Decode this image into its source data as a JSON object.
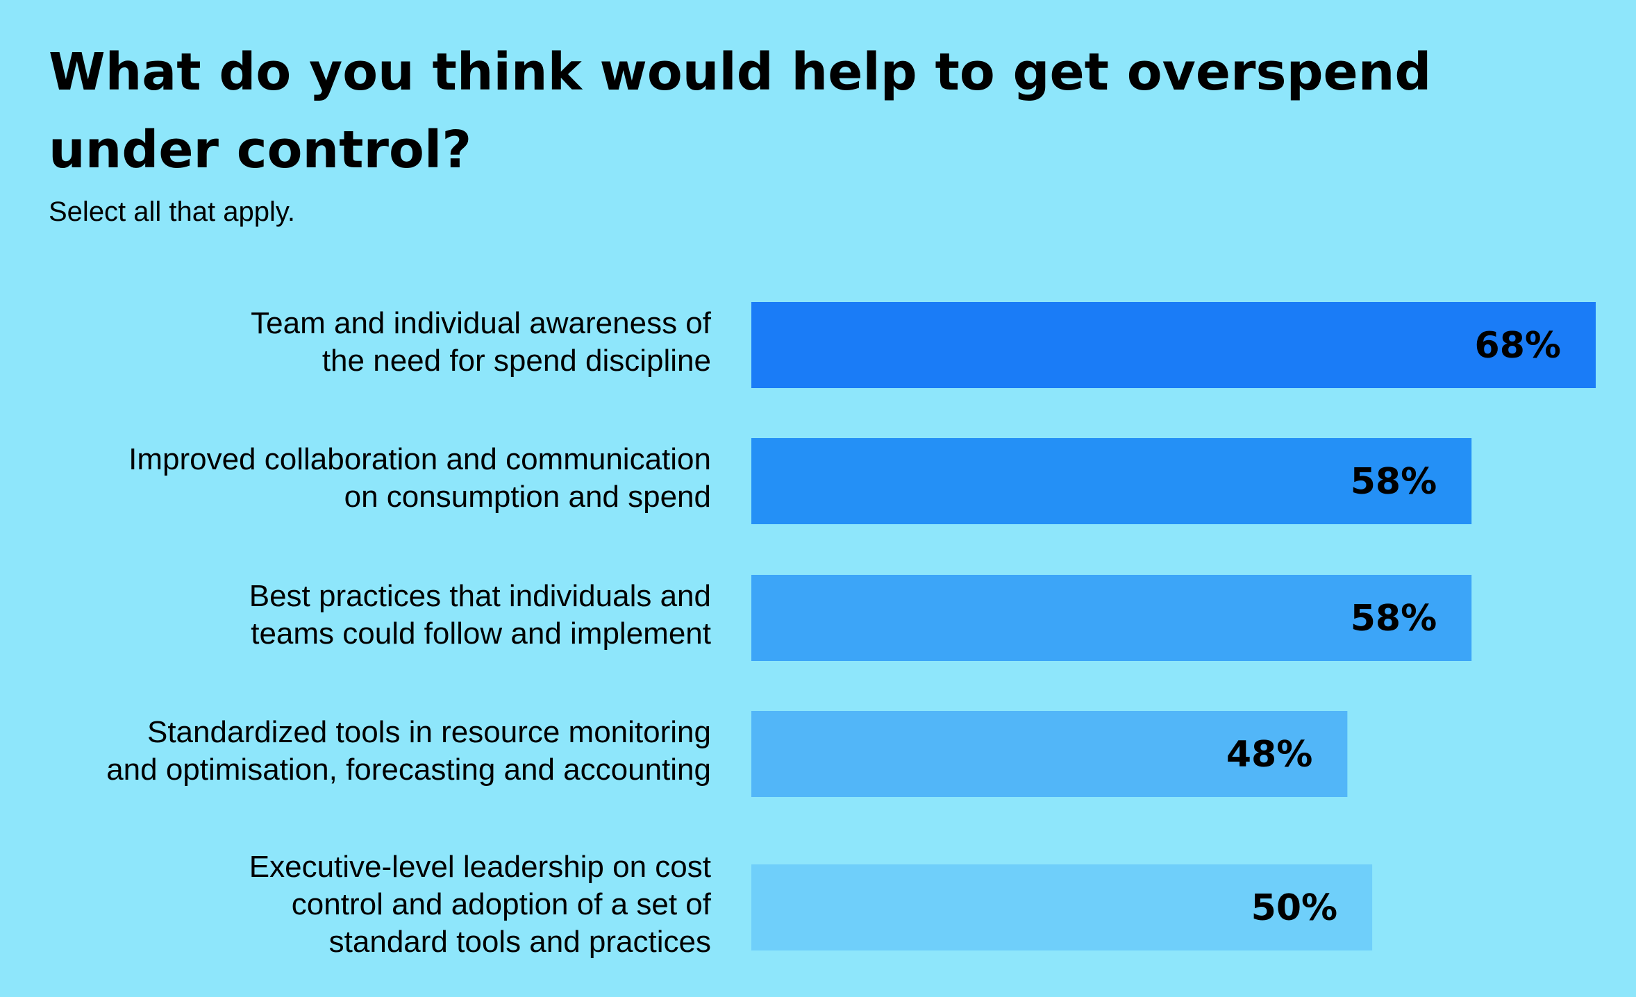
{
  "title": "What do you think would help to get overspend under control?",
  "subtitle": "Select all that apply.",
  "chart_data": {
    "type": "bar",
    "orientation": "horizontal",
    "title": "What do you think would help to get overspend under control?",
    "subtitle": "Select all that apply.",
    "categories": [
      [
        "Team and individual awareness of",
        "the need for spend discipline"
      ],
      [
        "Improved collaboration and communication",
        "on consumption and spend"
      ],
      [
        "Best practices that individuals and",
        "teams could follow and implement"
      ],
      [
        "Standardized tools in resource monitoring",
        "and optimisation, forecasting and accounting"
      ],
      [
        "Executive-level leadership on cost",
        "control and adoption of a set of",
        "standard tools and practices"
      ]
    ],
    "values": [
      68,
      58,
      58,
      48,
      50
    ],
    "value_labels": [
      "68%",
      "58%",
      "58%",
      "48%",
      "50%"
    ],
    "bar_colors": [
      "#1a7cf7",
      "#2490f6",
      "#3ca5f8",
      "#52b6f8",
      "#6fcffa"
    ],
    "xlim": [
      0,
      68
    ],
    "grid": false,
    "legend": "none"
  }
}
